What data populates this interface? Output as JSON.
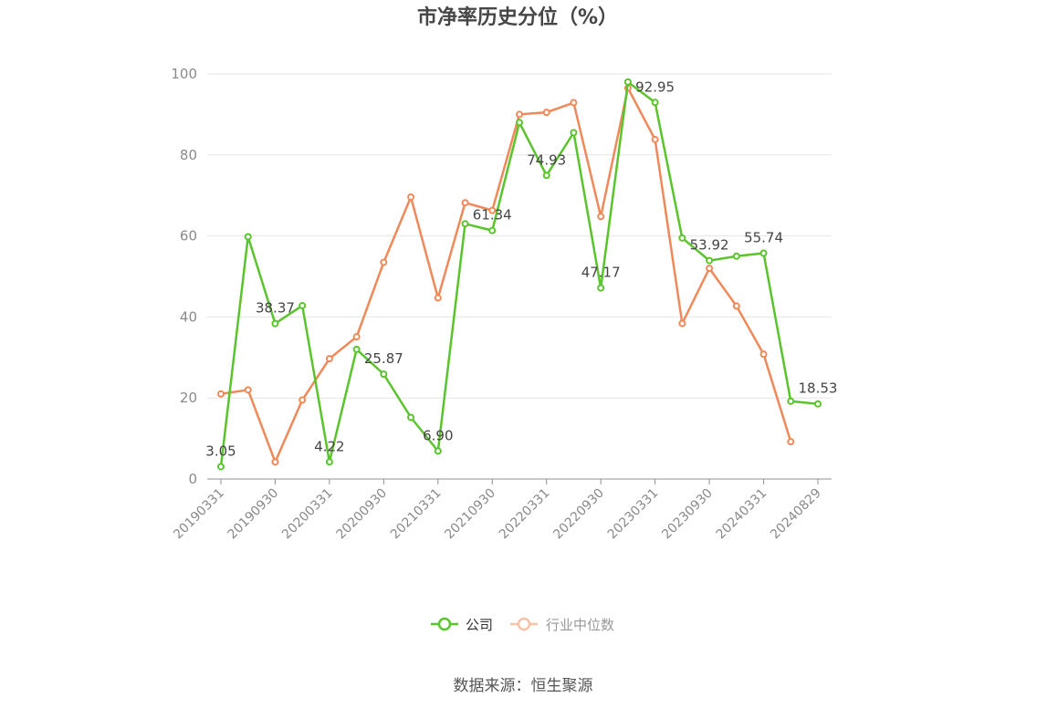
{
  "chart_data": {
    "type": "line",
    "title": "市净率历史分位（%）",
    "ylim": [
      0,
      100
    ],
    "yticks": [
      0,
      20,
      40,
      60,
      80,
      100
    ],
    "x": [
      "20190331",
      "20190630",
      "20190930",
      "20191231",
      "20200331",
      "20200630",
      "20200930",
      "20201231",
      "20210331",
      "20210630",
      "20210930",
      "20211231",
      "20220331",
      "20220630",
      "20220930",
      "20221231",
      "20230331",
      "20230630",
      "20230930",
      "20231231",
      "20240331",
      "20240630",
      "20240829"
    ],
    "xtick_labels": [
      "20190331",
      "20190930",
      "20200331",
      "20200930",
      "20210331",
      "20210930",
      "20220331",
      "20220930",
      "20230331",
      "20230930",
      "20240331",
      "20240829"
    ],
    "series": [
      {
        "name": "公司",
        "color": "#5ac42d",
        "values": [
          3.05,
          59.8,
          38.37,
          42.8,
          4.22,
          32.0,
          25.87,
          15.2,
          6.9,
          63.0,
          61.34,
          88.0,
          74.93,
          85.5,
          47.17,
          98.0,
          92.95,
          59.5,
          53.92,
          55.0,
          55.74,
          19.2,
          18.53
        ],
        "labels": {
          "0": "3.05",
          "2": "38.37",
          "4": "4.22",
          "6": "25.87",
          "8": "6.90",
          "10": "61.34",
          "12": "74.93",
          "14": "47.17",
          "16": "92.95",
          "18": "53.92",
          "20": "55.74",
          "22": "18.53"
        }
      },
      {
        "name": "行业中位数",
        "color": "#f0895a",
        "values": [
          21.0,
          22.0,
          4.2,
          19.5,
          29.7,
          35.1,
          53.5,
          69.6,
          44.7,
          68.2,
          66.3,
          90.0,
          90.5,
          92.9,
          64.8,
          96.5,
          83.8,
          38.4,
          52.0,
          42.7,
          30.8,
          9.2,
          null
        ]
      }
    ],
    "legend_position": "bottom-center",
    "grid": true
  },
  "source_text": "数据来源：恒生聚源"
}
